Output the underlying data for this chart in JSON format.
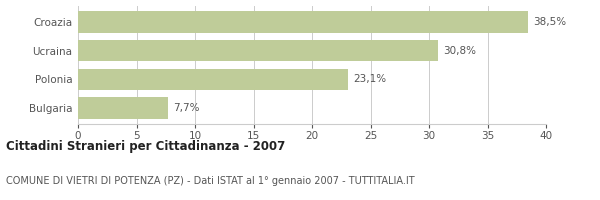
{
  "categories": [
    "Bulgaria",
    "Polonia",
    "Ucraina",
    "Croazia"
  ],
  "values": [
    7.7,
    23.1,
    30.8,
    38.5
  ],
  "labels": [
    "7,7%",
    "23,1%",
    "30,8%",
    "38,5%"
  ],
  "bar_color": "#bfcc99",
  "title": "Cittadini Stranieri per Cittadinanza - 2007",
  "subtitle": "COMUNE DI VIETRI DI POTENZA (PZ) - Dati ISTAT al 1° gennaio 2007 - TUTTITALIA.IT",
  "xlim": [
    0,
    40
  ],
  "xticks": [
    0,
    5,
    10,
    15,
    20,
    25,
    30,
    35,
    40
  ],
  "background_color": "#ffffff",
  "grid_color": "#cccccc",
  "title_fontsize": 8.5,
  "subtitle_fontsize": 7.0,
  "label_fontsize": 7.5,
  "tick_fontsize": 7.5,
  "category_fontsize": 7.5,
  "bar_height": 0.75
}
